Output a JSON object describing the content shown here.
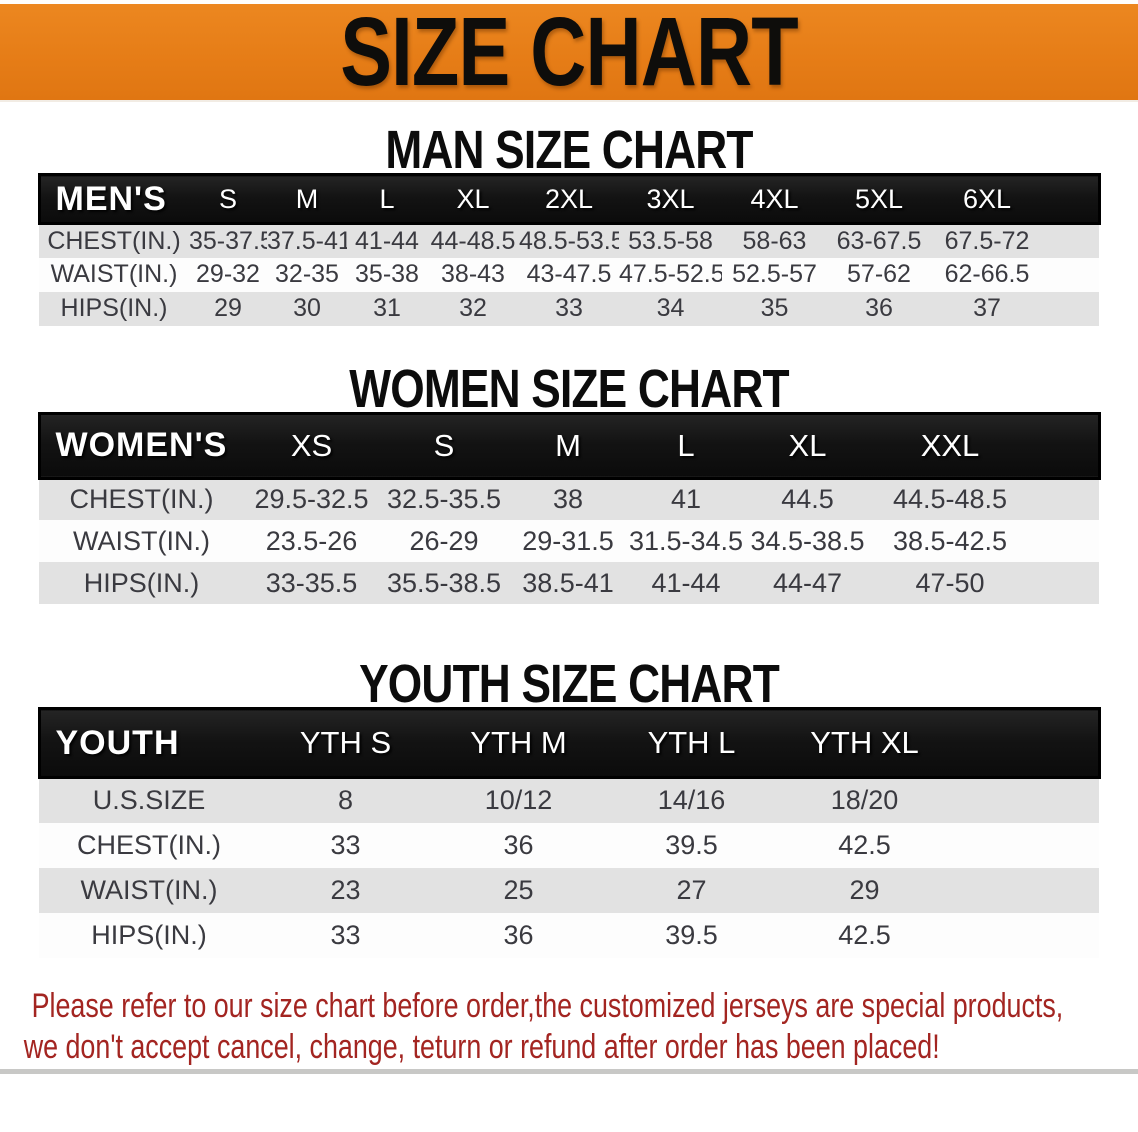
{
  "banner": {
    "title": "SIZE CHART"
  },
  "sections": [
    {
      "heading": "MAN SIZE CHART",
      "table": {
        "header_label": "MEN'S",
        "columns": [
          "S",
          "M",
          "L",
          "XL",
          "2XL",
          "3XL",
          "4XL",
          "5XL",
          "6XL"
        ],
        "rows": [
          {
            "label": "CHEST(IN.)",
            "values": [
              "35-37.5",
              "37.5-41",
              "41-44",
              "44-48.5",
              "48.5-53.5",
              "53.5-58",
              "58-63",
              "63-67.5",
              "67.5-72"
            ]
          },
          {
            "label": "WAIST(IN.)",
            "values": [
              "29-32",
              "32-35",
              "35-38",
              "38-43",
              "43-47.5",
              "47.5-52.5",
              "52.5-57",
              "57-62",
              "62-66.5"
            ]
          },
          {
            "label": "HIPS(IN.)",
            "values": [
              "29",
              "30",
              "31",
              "32",
              "33",
              "34",
              "35",
              "36",
              "37"
            ]
          }
        ]
      }
    },
    {
      "heading": "WOMEN SIZE CHART",
      "table": {
        "header_label": "WOMEN'S",
        "columns": [
          "XS",
          "S",
          "M",
          "L",
          "XL",
          "XXL"
        ],
        "rows": [
          {
            "label": "CHEST(IN.)",
            "values": [
              "29.5-32.5",
              "32.5-35.5",
              "38",
              "41",
              "44.5",
              "44.5-48.5"
            ]
          },
          {
            "label": "WAIST(IN.)",
            "values": [
              "23.5-26",
              "26-29",
              "29-31.5",
              "31.5-34.5",
              "34.5-38.5",
              "38.5-42.5"
            ]
          },
          {
            "label": "HIPS(IN.)",
            "values": [
              "33-35.5",
              "35.5-38.5",
              "38.5-41",
              "41-44",
              "44-47",
              "47-50"
            ]
          }
        ]
      }
    },
    {
      "heading": "YOUTH SIZE CHART",
      "table": {
        "header_label": "YOUTH",
        "columns": [
          "YTH S",
          "YTH M",
          "YTH L",
          "YTH XL"
        ],
        "rows": [
          {
            "label": "U.S.SIZE",
            "values": [
              "8",
              "10/12",
              "14/16",
              "18/20"
            ]
          },
          {
            "label": "CHEST(IN.)",
            "values": [
              "33",
              "36",
              "39.5",
              "42.5"
            ]
          },
          {
            "label": "WAIST(IN.)",
            "values": [
              "23",
              "25",
              "27",
              "29"
            ]
          },
          {
            "label": "HIPS(IN.)",
            "values": [
              "33",
              "36",
              "39.5",
              "42.5"
            ]
          }
        ]
      }
    }
  ],
  "disclaimer": {
    "lines": [
      "Please refer to our size chart before order,the customized jerseys are special products,",
      "we don't accept cancel, change, teturn or refund after order has been placed!"
    ]
  },
  "colors": {
    "banner_bg": "#e67d17",
    "header_bar": "#131313",
    "row_shade": "#e2e2e2",
    "disclaimer_red": "#a32521"
  }
}
